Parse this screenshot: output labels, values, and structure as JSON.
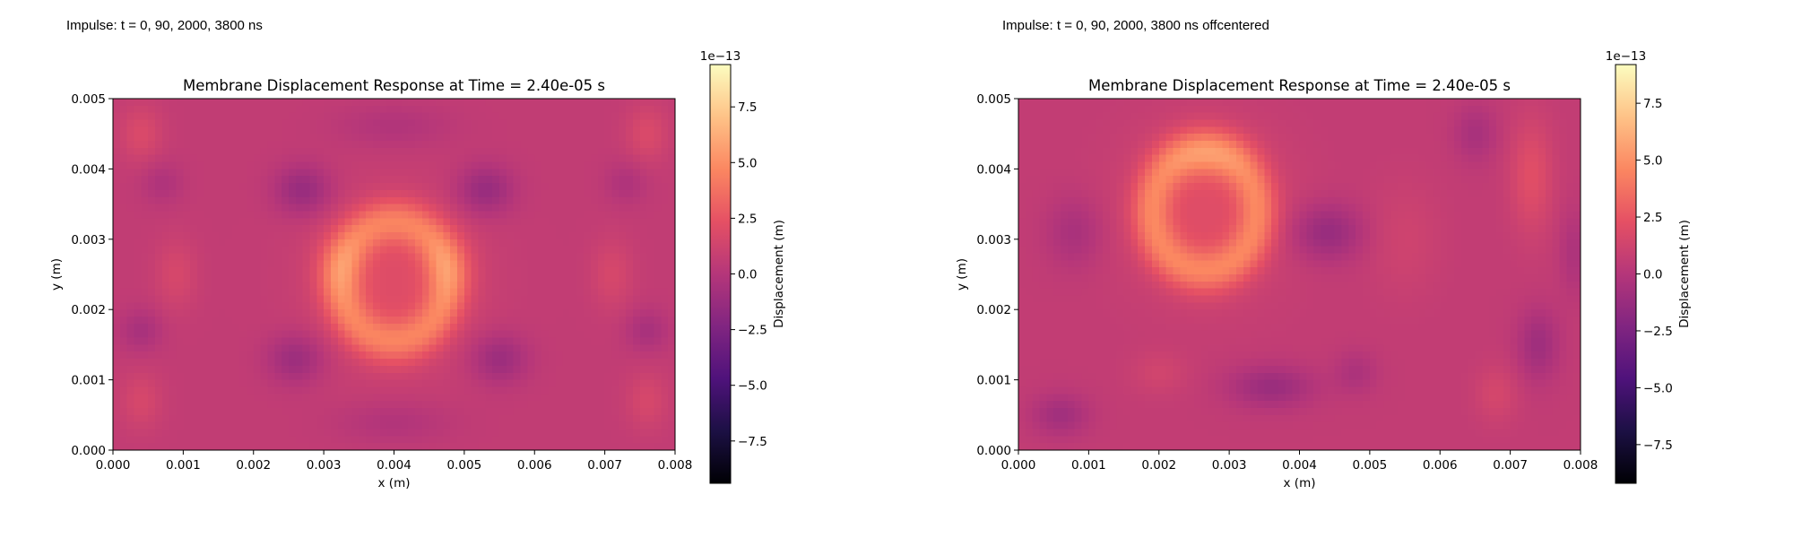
{
  "panels": [
    {
      "caption": "Impulse: t = 0, 90, 2000, 3800 ns",
      "chart_data": {
        "type": "heatmap",
        "title": "Membrane Displacement Response at Time = 2.40e-05 s",
        "xlabel": "x (m)",
        "ylabel": "y (m)",
        "xlim": [
          0,
          0.008
        ],
        "ylim": [
          0,
          0.005
        ],
        "x_ticks": [
          "0.000",
          "0.001",
          "0.002",
          "0.003",
          "0.004",
          "0.005",
          "0.006",
          "0.007",
          "0.008"
        ],
        "y_ticks": [
          "0.000",
          "0.001",
          "0.002",
          "0.003",
          "0.004",
          "0.005"
        ],
        "colormap": "magma",
        "colorbar": {
          "label": "Displacement (m)",
          "offset_text": "1e−13",
          "range": [
            -9.4,
            9.4
          ],
          "ticks": [
            "7.5",
            "5.0",
            "2.5",
            "0.0",
            "−2.5",
            "−5.0",
            "−7.5"
          ],
          "tick_values": [
            7.5,
            5.0,
            2.5,
            0.0,
            -2.5,
            -5.0,
            -7.5
          ]
        },
        "field": {
          "background": 0.6,
          "features": [
            {
              "kind": "ring",
              "cx": 0.004,
              "cy": 0.0024,
              "rx": 0.00075,
              "ry": 0.00085,
              "w": 0.00028,
              "amp": 3.2
            },
            {
              "kind": "blob",
              "cx": 0.004,
              "cy": 0.0024,
              "rx": 0.0011,
              "ry": 0.00115,
              "amp": 1.4
            },
            {
              "kind": "blob",
              "cx": 0.0032,
              "cy": 0.0026,
              "rx": 0.00035,
              "ry": 0.0005,
              "amp": 1.2
            },
            {
              "kind": "blob",
              "cx": 0.0048,
              "cy": 0.0026,
              "rx": 0.00035,
              "ry": 0.0005,
              "amp": 1.2
            },
            {
              "kind": "blob",
              "cx": 0.0027,
              "cy": 0.0037,
              "rx": 0.0004,
              "ry": 0.00035,
              "amp": -2.0
            },
            {
              "kind": "blob",
              "cx": 0.0053,
              "cy": 0.0037,
              "rx": 0.0004,
              "ry": 0.00035,
              "amp": -2.0
            },
            {
              "kind": "blob",
              "cx": 0.0026,
              "cy": 0.0013,
              "rx": 0.0004,
              "ry": 0.00035,
              "amp": -1.8
            },
            {
              "kind": "blob",
              "cx": 0.0055,
              "cy": 0.0013,
              "rx": 0.0004,
              "ry": 0.00035,
              "amp": -1.8
            },
            {
              "kind": "blob",
              "cx": 0.004,
              "cy": 0.0046,
              "rx": 0.0008,
              "ry": 0.0003,
              "amp": -0.8
            },
            {
              "kind": "blob",
              "cx": 0.004,
              "cy": 0.0004,
              "rx": 0.0008,
              "ry": 0.0003,
              "amp": -0.8
            },
            {
              "kind": "blob",
              "cx": 0.0004,
              "cy": 0.0045,
              "rx": 0.0003,
              "ry": 0.0004,
              "amp": 1.2
            },
            {
              "kind": "blob",
              "cx": 0.0076,
              "cy": 0.0045,
              "rx": 0.0003,
              "ry": 0.0004,
              "amp": 1.2
            },
            {
              "kind": "blob",
              "cx": 0.0004,
              "cy": 0.0007,
              "rx": 0.0003,
              "ry": 0.0004,
              "amp": 1.0
            },
            {
              "kind": "blob",
              "cx": 0.0076,
              "cy": 0.0007,
              "rx": 0.0003,
              "ry": 0.0004,
              "amp": 1.0
            },
            {
              "kind": "blob",
              "cx": 0.0004,
              "cy": 0.0017,
              "rx": 0.0003,
              "ry": 0.0003,
              "amp": -1.2
            },
            {
              "kind": "blob",
              "cx": 0.0076,
              "cy": 0.0017,
              "rx": 0.0003,
              "ry": 0.0003,
              "amp": -1.2
            },
            {
              "kind": "blob",
              "cx": 0.0007,
              "cy": 0.0038,
              "rx": 0.0003,
              "ry": 0.0003,
              "amp": -0.9
            },
            {
              "kind": "blob",
              "cx": 0.0073,
              "cy": 0.0038,
              "rx": 0.0003,
              "ry": 0.0003,
              "amp": -0.9
            },
            {
              "kind": "blob",
              "cx": 0.0009,
              "cy": 0.0025,
              "rx": 0.0003,
              "ry": 0.0005,
              "amp": 1.0
            },
            {
              "kind": "blob",
              "cx": 0.0071,
              "cy": 0.0025,
              "rx": 0.0003,
              "ry": 0.0005,
              "amp": 1.0
            }
          ]
        }
      }
    },
    {
      "caption": "Impulse: t = 0, 90, 2000, 3800 ns offcentered",
      "chart_data": {
        "type": "heatmap",
        "title": "Membrane Displacement Response at Time = 2.40e-05 s",
        "xlabel": "x (m)",
        "ylabel": "y (m)",
        "xlim": [
          0,
          0.008
        ],
        "ylim": [
          0,
          0.005
        ],
        "x_ticks": [
          "0.000",
          "0.001",
          "0.002",
          "0.003",
          "0.004",
          "0.005",
          "0.006",
          "0.007",
          "0.008"
        ],
        "y_ticks": [
          "0.000",
          "0.001",
          "0.002",
          "0.003",
          "0.004",
          "0.005"
        ],
        "colormap": "magma",
        "colorbar": {
          "label": "Displacement (m)",
          "offset_text": "1e−13",
          "range": [
            -9.2,
            9.2
          ],
          "ticks": [
            "7.5",
            "5.0",
            "2.5",
            "0.0",
            "−2.5",
            "−5.0",
            "−7.5"
          ],
          "tick_values": [
            7.5,
            5.0,
            2.5,
            0.0,
            -2.5,
            -5.0,
            -7.5
          ]
        },
        "field": {
          "background": 0.6,
          "features": [
            {
              "kind": "ring",
              "cx": 0.00265,
              "cy": 0.0034,
              "rx": 0.00075,
              "ry": 0.00085,
              "w": 0.00028,
              "amp": 3.2
            },
            {
              "kind": "blob",
              "cx": 0.00265,
              "cy": 0.0034,
              "rx": 0.0011,
              "ry": 0.00115,
              "amp": 1.4
            },
            {
              "kind": "blob",
              "cx": 0.0027,
              "cy": 0.0042,
              "rx": 0.0006,
              "ry": 0.00035,
              "amp": 1.0
            },
            {
              "kind": "blob",
              "cx": 0.0044,
              "cy": 0.0031,
              "rx": 0.0005,
              "ry": 0.0004,
              "amp": -2.0
            },
            {
              "kind": "blob",
              "cx": 0.0036,
              "cy": 0.0009,
              "rx": 0.0006,
              "ry": 0.0003,
              "amp": -1.8
            },
            {
              "kind": "blob",
              "cx": 0.0006,
              "cy": 0.0005,
              "rx": 0.0004,
              "ry": 0.0003,
              "amp": -1.5
            },
            {
              "kind": "blob",
              "cx": 0.0008,
              "cy": 0.0031,
              "rx": 0.0004,
              "ry": 0.0005,
              "amp": -1.2
            },
            {
              "kind": "blob",
              "cx": 0.0048,
              "cy": 0.0011,
              "rx": 0.0003,
              "ry": 0.0003,
              "amp": -1.0
            },
            {
              "kind": "blob",
              "cx": 0.0074,
              "cy": 0.0015,
              "rx": 0.0003,
              "ry": 0.0005,
              "amp": -1.6
            },
            {
              "kind": "blob",
              "cx": 0.0065,
              "cy": 0.0045,
              "rx": 0.0003,
              "ry": 0.0004,
              "amp": -1.2
            },
            {
              "kind": "blob",
              "cx": 0.0073,
              "cy": 0.0039,
              "rx": 0.0003,
              "ry": 0.0008,
              "amp": 1.5
            },
            {
              "kind": "blob",
              "cx": 0.0068,
              "cy": 0.0008,
              "rx": 0.0003,
              "ry": 0.0004,
              "amp": 0.9
            },
            {
              "kind": "blob",
              "cx": 0.0079,
              "cy": 0.0028,
              "rx": 0.0002,
              "ry": 0.0006,
              "amp": -1.0
            },
            {
              "kind": "blob",
              "cx": 0.0055,
              "cy": 0.003,
              "rx": 0.0005,
              "ry": 0.0008,
              "amp": 0.6
            },
            {
              "kind": "blob",
              "cx": 0.002,
              "cy": 0.0011,
              "rx": 0.0004,
              "ry": 0.0003,
              "amp": 0.7
            }
          ]
        }
      }
    }
  ]
}
